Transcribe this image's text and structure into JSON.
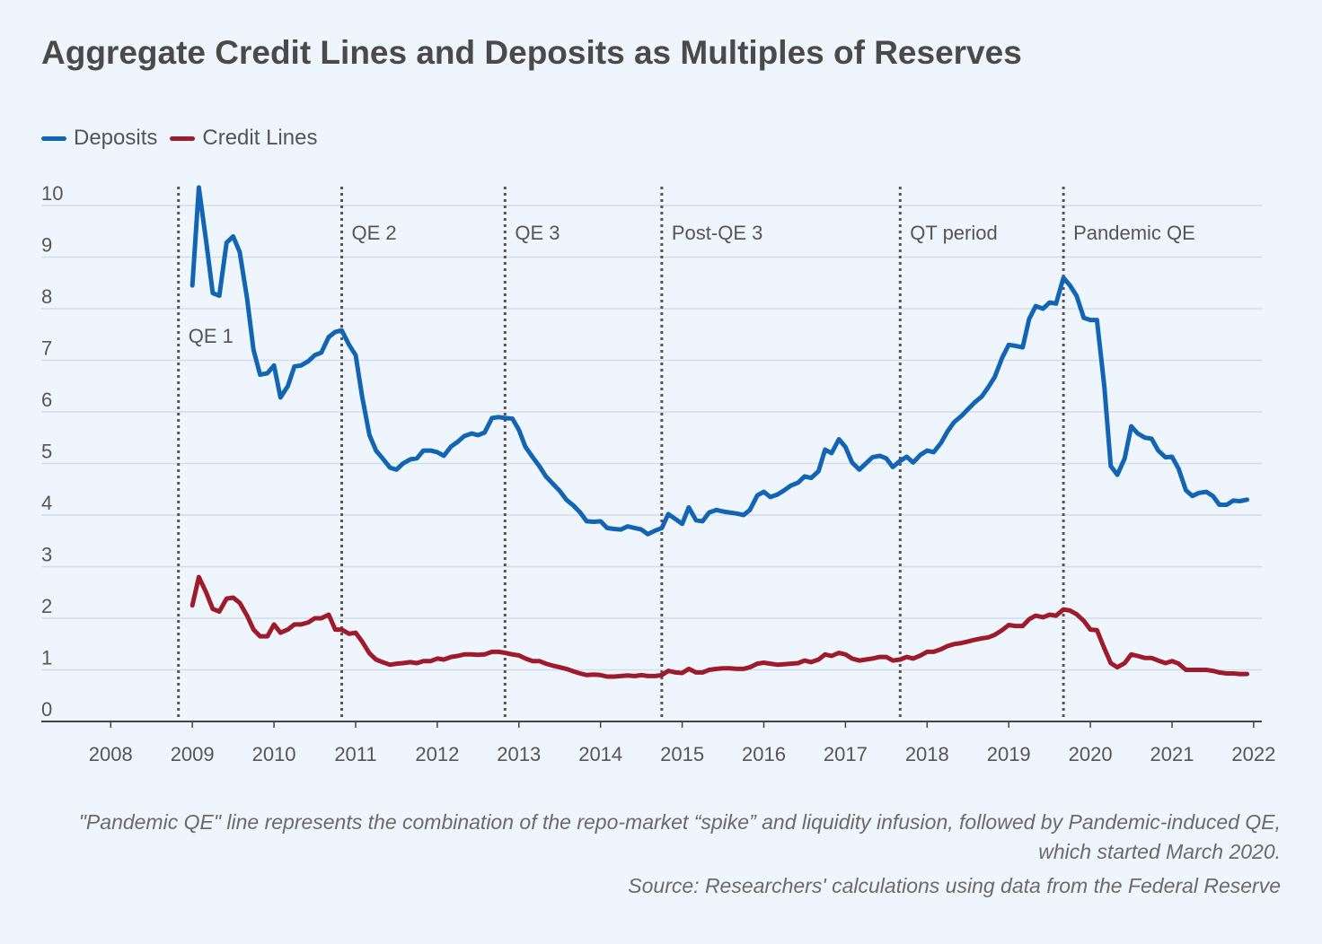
{
  "title": "Aggregate Credit Lines and Deposits as Multiples of Reserves",
  "legend": {
    "deposits_label": "Deposits",
    "credit_label": "Credit Lines"
  },
  "note": "\"Pandemic QE\" line represents the combination of the repo-market “spike” and liquidity infusion, followed by Pandemic-induced QE, which started March 2020.",
  "source": "Source: Researchers' calculations using data from the Federal Reserve",
  "colors": {
    "deposits": "#1464b4",
    "credit": "#9e1b2b",
    "grid": "#d3dde8",
    "axis": "#444444",
    "vline": "#555555"
  },
  "chart_data": {
    "type": "line",
    "title": "Aggregate Credit Lines and Deposits as Multiples of Reserves",
    "xlabel": "",
    "ylabel": "",
    "xlim": [
      2007.15,
      2022.1
    ],
    "ylim": [
      0,
      10
    ],
    "grid": true,
    "legend_position": "top-left",
    "x_ticks": [
      2008,
      2009,
      2010,
      2011,
      2012,
      2013,
      2014,
      2015,
      2016,
      2017,
      2018,
      2019,
      2020,
      2021,
      2022
    ],
    "y_ticks": [
      0,
      1,
      2,
      3,
      4,
      5,
      6,
      7,
      8,
      9,
      10
    ],
    "periods": [
      {
        "label": "QE 1",
        "x": 2008.83
      },
      {
        "label": "QE 2",
        "x": 2010.83
      },
      {
        "label": "QE 3",
        "x": 2012.83
      },
      {
        "label": "Post-QE 3",
        "x": 2014.75
      },
      {
        "label": "QT period",
        "x": 2017.67
      },
      {
        "label": "Pandemic QE",
        "x": 2019.67
      }
    ],
    "series": [
      {
        "name": "Deposits",
        "color": "#1464b4",
        "x": [
          2009.0,
          2009.08,
          2009.17,
          2009.25,
          2009.33,
          2009.42,
          2009.5,
          2009.58,
          2009.67,
          2009.75,
          2009.83,
          2009.92,
          2010.0,
          2010.08,
          2010.17,
          2010.25,
          2010.33,
          2010.42,
          2010.5,
          2010.58,
          2010.67,
          2010.75,
          2010.83,
          2010.92,
          2011.0,
          2011.08,
          2011.17,
          2011.25,
          2011.33,
          2011.42,
          2011.5,
          2011.58,
          2011.67,
          2011.75,
          2011.83,
          2011.92,
          2012.0,
          2012.08,
          2012.17,
          2012.25,
          2012.33,
          2012.42,
          2012.5,
          2012.58,
          2012.67,
          2012.75,
          2012.83,
          2012.92,
          2013.0,
          2013.08,
          2013.17,
          2013.25,
          2013.33,
          2013.42,
          2013.5,
          2013.58,
          2013.67,
          2013.75,
          2013.83,
          2013.92,
          2014.0,
          2014.08,
          2014.17,
          2014.25,
          2014.33,
          2014.42,
          2014.5,
          2014.58,
          2014.67,
          2014.75,
          2014.83,
          2014.92,
          2015.0,
          2015.08,
          2015.17,
          2015.25,
          2015.33,
          2015.42,
          2015.5,
          2015.58,
          2015.67,
          2015.75,
          2015.83,
          2015.92,
          2016.0,
          2016.08,
          2016.17,
          2016.25,
          2016.33,
          2016.42,
          2016.5,
          2016.58,
          2016.67,
          2016.75,
          2016.83,
          2016.92,
          2017.0,
          2017.08,
          2017.17,
          2017.25,
          2017.33,
          2017.42,
          2017.5,
          2017.58,
          2017.67,
          2017.75,
          2017.83,
          2017.92,
          2018.0,
          2018.08,
          2018.17,
          2018.25,
          2018.33,
          2018.42,
          2018.5,
          2018.58,
          2018.67,
          2018.75,
          2018.83,
          2018.92,
          2019.0,
          2019.08,
          2019.17,
          2019.25,
          2019.33,
          2019.42,
          2019.5,
          2019.58,
          2019.67,
          2019.75,
          2019.83,
          2019.92,
          2020.0,
          2020.08,
          2020.17,
          2020.25,
          2020.33,
          2020.42,
          2020.5,
          2020.58,
          2020.67,
          2020.75,
          2020.83,
          2020.92,
          2021.0,
          2021.08,
          2021.17,
          2021.25,
          2021.33,
          2021.42,
          2021.5,
          2021.58,
          2021.67,
          2021.75,
          2021.83,
          2021.92
        ],
        "values": [
          8.45,
          10.35,
          9.3,
          8.3,
          8.25,
          9.28,
          9.4,
          9.1,
          8.2,
          7.2,
          6.72,
          6.75,
          6.9,
          6.28,
          6.5,
          6.88,
          6.9,
          6.98,
          7.1,
          7.15,
          7.45,
          7.55,
          7.58,
          7.3,
          7.1,
          6.3,
          5.55,
          5.25,
          5.1,
          4.92,
          4.88,
          5.0,
          5.08,
          5.1,
          5.25,
          5.25,
          5.22,
          5.15,
          5.33,
          5.42,
          5.53,
          5.58,
          5.55,
          5.6,
          5.88,
          5.9,
          5.88,
          5.87,
          5.65,
          5.32,
          5.12,
          4.95,
          4.75,
          4.6,
          4.47,
          4.3,
          4.18,
          4.05,
          3.88,
          3.87,
          3.88,
          3.75,
          3.73,
          3.72,
          3.78,
          3.75,
          3.72,
          3.63,
          3.7,
          3.75,
          4.02,
          3.92,
          3.83,
          4.15,
          3.9,
          3.88,
          4.05,
          4.1,
          4.07,
          4.05,
          4.03,
          4.0,
          4.1,
          4.38,
          4.45,
          4.35,
          4.4,
          4.48,
          4.57,
          4.63,
          4.75,
          4.72,
          4.85,
          5.27,
          5.2,
          5.47,
          5.32,
          5.02,
          4.88,
          5.0,
          5.12,
          5.15,
          5.1,
          4.93,
          5.05,
          5.13,
          5.02,
          5.17,
          5.25,
          5.22,
          5.4,
          5.62,
          5.8,
          5.92,
          6.05,
          6.18,
          6.3,
          6.48,
          6.68,
          7.05,
          7.3,
          7.28,
          7.25,
          7.8,
          8.05,
          8.0,
          8.12,
          8.1,
          8.6,
          8.45,
          8.25,
          7.82,
          7.78,
          7.78,
          6.5,
          4.95,
          4.78,
          5.1,
          5.72,
          5.58,
          5.5,
          5.48,
          5.25,
          5.12,
          5.13,
          4.9,
          4.48,
          4.37,
          4.43,
          4.45,
          4.37,
          4.2,
          4.2,
          4.28,
          4.27,
          4.3
        ]
      },
      {
        "name": "Credit Lines",
        "color": "#9e1b2b",
        "x": [
          2009.0,
          2009.08,
          2009.17,
          2009.25,
          2009.33,
          2009.42,
          2009.5,
          2009.58,
          2009.67,
          2009.75,
          2009.83,
          2009.92,
          2010.0,
          2010.08,
          2010.17,
          2010.25,
          2010.33,
          2010.42,
          2010.5,
          2010.58,
          2010.67,
          2010.75,
          2010.83,
          2010.92,
          2011.0,
          2011.08,
          2011.17,
          2011.25,
          2011.33,
          2011.42,
          2011.5,
          2011.58,
          2011.67,
          2011.75,
          2011.83,
          2011.92,
          2012.0,
          2012.08,
          2012.17,
          2012.25,
          2012.33,
          2012.42,
          2012.5,
          2012.58,
          2012.67,
          2012.75,
          2012.83,
          2012.92,
          2013.0,
          2013.08,
          2013.17,
          2013.25,
          2013.33,
          2013.42,
          2013.5,
          2013.58,
          2013.67,
          2013.75,
          2013.83,
          2013.92,
          2014.0,
          2014.08,
          2014.17,
          2014.25,
          2014.33,
          2014.42,
          2014.5,
          2014.58,
          2014.67,
          2014.75,
          2014.83,
          2014.92,
          2015.0,
          2015.08,
          2015.17,
          2015.25,
          2015.33,
          2015.42,
          2015.5,
          2015.58,
          2015.67,
          2015.75,
          2015.83,
          2015.92,
          2016.0,
          2016.08,
          2016.17,
          2016.25,
          2016.33,
          2016.42,
          2016.5,
          2016.58,
          2016.67,
          2016.75,
          2016.83,
          2016.92,
          2017.0,
          2017.08,
          2017.17,
          2017.25,
          2017.33,
          2017.42,
          2017.5,
          2017.58,
          2017.67,
          2017.75,
          2017.83,
          2017.92,
          2018.0,
          2018.08,
          2018.17,
          2018.25,
          2018.33,
          2018.42,
          2018.5,
          2018.58,
          2018.67,
          2018.75,
          2018.83,
          2018.92,
          2019.0,
          2019.08,
          2019.17,
          2019.25,
          2019.33,
          2019.42,
          2019.5,
          2019.58,
          2019.67,
          2019.75,
          2019.83,
          2019.92,
          2020.0,
          2020.08,
          2020.17,
          2020.25,
          2020.33,
          2020.42,
          2020.5,
          2020.58,
          2020.67,
          2020.75,
          2020.83,
          2020.92,
          2021.0,
          2021.08,
          2021.17,
          2021.25,
          2021.33,
          2021.42,
          2021.5,
          2021.58,
          2021.67,
          2021.75,
          2021.83,
          2021.92
        ],
        "values": [
          2.25,
          2.8,
          2.5,
          2.18,
          2.13,
          2.38,
          2.4,
          2.3,
          2.05,
          1.78,
          1.65,
          1.65,
          1.88,
          1.72,
          1.78,
          1.88,
          1.88,
          1.92,
          2.0,
          2.0,
          2.07,
          1.78,
          1.78,
          1.7,
          1.72,
          1.55,
          1.32,
          1.2,
          1.15,
          1.1,
          1.12,
          1.13,
          1.15,
          1.13,
          1.17,
          1.17,
          1.22,
          1.2,
          1.25,
          1.27,
          1.3,
          1.3,
          1.29,
          1.3,
          1.35,
          1.35,
          1.33,
          1.3,
          1.28,
          1.22,
          1.17,
          1.17,
          1.12,
          1.08,
          1.05,
          1.02,
          0.97,
          0.93,
          0.9,
          0.91,
          0.9,
          0.87,
          0.87,
          0.88,
          0.89,
          0.88,
          0.9,
          0.88,
          0.88,
          0.9,
          0.98,
          0.95,
          0.94,
          1.02,
          0.95,
          0.95,
          1.0,
          1.02,
          1.03,
          1.03,
          1.02,
          1.02,
          1.05,
          1.12,
          1.14,
          1.12,
          1.1,
          1.11,
          1.12,
          1.13,
          1.18,
          1.15,
          1.2,
          1.3,
          1.27,
          1.33,
          1.3,
          1.22,
          1.18,
          1.2,
          1.22,
          1.25,
          1.25,
          1.18,
          1.2,
          1.25,
          1.22,
          1.28,
          1.35,
          1.35,
          1.4,
          1.46,
          1.5,
          1.52,
          1.55,
          1.58,
          1.61,
          1.63,
          1.68,
          1.77,
          1.87,
          1.85,
          1.85,
          1.98,
          2.05,
          2.02,
          2.07,
          2.05,
          2.17,
          2.15,
          2.08,
          1.95,
          1.78,
          1.77,
          1.42,
          1.13,
          1.05,
          1.13,
          1.3,
          1.27,
          1.23,
          1.23,
          1.18,
          1.13,
          1.17,
          1.12,
          1.0,
          1.0,
          1.0,
          1.0,
          0.98,
          0.95,
          0.93,
          0.93,
          0.92,
          0.92
        ]
      }
    ]
  }
}
